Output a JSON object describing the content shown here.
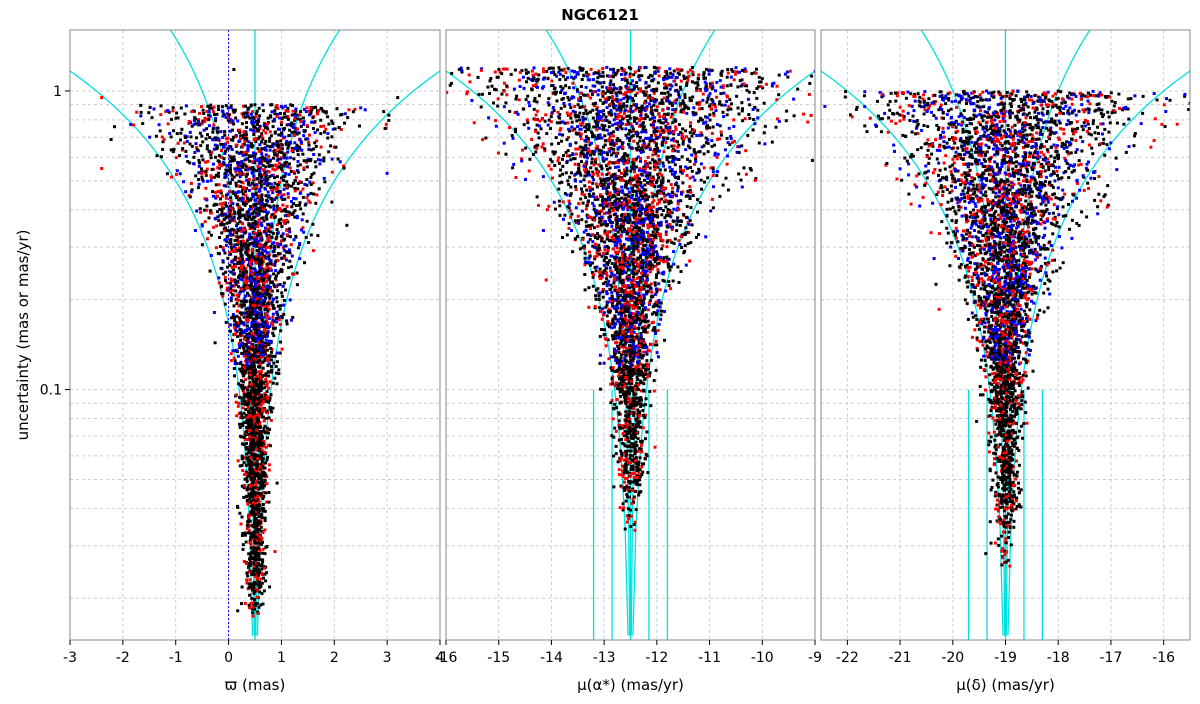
{
  "chart_data": {
    "type": "scatter",
    "title": "NGC6121",
    "ylabel": "uncertainty (mas or mas/yr)",
    "yscale": "log",
    "ylim": [
      0.0145,
      1.6
    ],
    "y_ticks": [
      {
        "value": 1,
        "label": "1"
      },
      {
        "value": 0.1,
        "label": "0.1"
      }
    ],
    "grid": true,
    "colors": {
      "black_points": "#000000",
      "blue_points": "#0000ff",
      "red_points": "#ff0000",
      "guide_curves": "#00e0e0",
      "zero_line": "#0000ff",
      "grid": "#cccccc"
    },
    "series": [
      {
        "color": "#000000"
      },
      {
        "color": "#0000ff"
      },
      {
        "color": "#ff0000"
      }
    ],
    "panels": [
      {
        "xlabel": "ϖ (mas)",
        "xlim": [
          -3,
          4
        ],
        "x_ticks": [
          {
            "value": -3,
            "label": "-3"
          },
          {
            "value": -2,
            "label": "-2"
          },
          {
            "value": -1,
            "label": "-1"
          },
          {
            "value": 0,
            "label": "0"
          },
          {
            "value": 1,
            "label": "1"
          },
          {
            "value": 2,
            "label": "2"
          },
          {
            "value": 3,
            "label": "3"
          },
          {
            "value": 4,
            "label": "4"
          }
        ],
        "center": 0.5,
        "zero_line": 0,
        "uncertainty_cap": 0.9,
        "n_points": 3800,
        "outliers": [
          {
            "x": -2.4,
            "y": 0.95,
            "series": 2
          },
          {
            "x": 0.1,
            "y": 1.18,
            "series": 0
          },
          {
            "x": 3.2,
            "y": 0.95,
            "series": 0
          },
          {
            "x": -2.4,
            "y": 0.55,
            "series": 2
          },
          {
            "x": 3.0,
            "y": 0.53,
            "series": 1
          }
        ]
      },
      {
        "xlabel": "μ(α*) (mas/yr)",
        "xlim": [
          -16,
          -9
        ],
        "x_ticks": [
          {
            "value": -16,
            "label": "-16"
          },
          {
            "value": -15,
            "label": "-15"
          },
          {
            "value": -14,
            "label": "-14"
          },
          {
            "value": -13,
            "label": "-13"
          },
          {
            "value": -12,
            "label": "-12"
          },
          {
            "value": -11,
            "label": "-11"
          },
          {
            "value": -10,
            "label": "-10"
          },
          {
            "value": -9,
            "label": "-9"
          }
        ],
        "center": -12.5,
        "uncertainty_cap": 1.2,
        "n_points": 4200,
        "outliers": []
      },
      {
        "xlabel": "μ(δ) (mas/yr)",
        "xlim": [
          -22.5,
          -15.5
        ],
        "x_ticks": [
          {
            "value": -22,
            "label": "-22"
          },
          {
            "value": -21,
            "label": "-21"
          },
          {
            "value": -20,
            "label": "-20"
          },
          {
            "value": -19,
            "label": "-19"
          },
          {
            "value": -18,
            "label": "-18"
          },
          {
            "value": -17,
            "label": "-17"
          },
          {
            "value": -16,
            "label": "-16"
          }
        ],
        "center": -19.0,
        "uncertainty_cap": 1.0,
        "n_points": 4000,
        "outliers": []
      }
    ]
  }
}
